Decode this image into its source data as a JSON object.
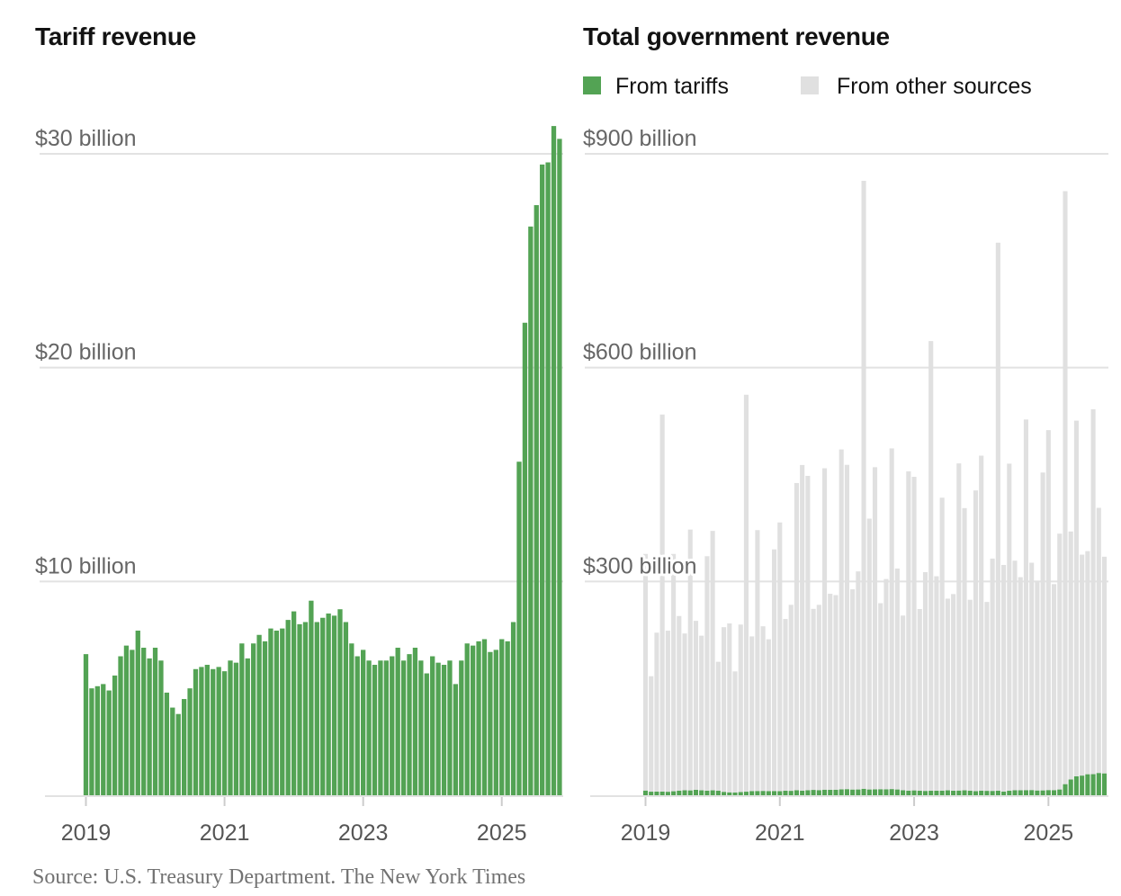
{
  "colors": {
    "tariffs": "#53a354",
    "other": "#e0e0e0",
    "grid": "#e2e2e2",
    "axis": "#cccccc"
  },
  "source": "Source: U.S. Treasury Department.  The New York Times",
  "chart_data": [
    {
      "type": "bar",
      "title": "Tariff revenue",
      "xlabel": "",
      "ylabel": "",
      "x_start": "2019-01",
      "x_end": "2025-11",
      "frequency": "monthly",
      "x_tick_labels": [
        "2019",
        "2021",
        "2023",
        "2025"
      ],
      "y_ticks": [
        10,
        20,
        30
      ],
      "y_tick_labels": [
        "$10 billion",
        "$20 billion",
        "$30 billion"
      ],
      "ylim": [
        0,
        30
      ],
      "units": "billion USD",
      "grid": true,
      "series": [
        {
          "name": "From tariffs",
          "values": [
            6.6,
            5.0,
            5.1,
            5.2,
            4.9,
            5.6,
            6.5,
            7.0,
            6.8,
            7.7,
            6.9,
            6.4,
            6.9,
            6.3,
            4.8,
            4.1,
            3.8,
            4.5,
            5.0,
            5.9,
            6.0,
            6.1,
            5.9,
            6.0,
            5.8,
            6.3,
            6.2,
            7.1,
            6.4,
            7.1,
            7.5,
            7.2,
            7.8,
            7.7,
            7.8,
            8.2,
            8.6,
            8.0,
            8.1,
            9.1,
            8.1,
            8.3,
            8.5,
            8.4,
            8.7,
            8.1,
            7.1,
            6.5,
            6.8,
            6.3,
            6.1,
            6.3,
            6.3,
            6.5,
            6.9,
            6.3,
            6.6,
            6.9,
            6.3,
            5.7,
            6.5,
            6.2,
            6.1,
            6.3,
            5.2,
            6.3,
            7.1,
            7.0,
            7.2,
            7.3,
            6.7,
            6.8,
            7.3,
            7.2,
            8.1,
            15.6,
            22.1,
            26.6,
            27.6,
            29.5,
            29.6,
            31.3,
            30.7
          ]
        }
      ]
    },
    {
      "type": "bar",
      "stacked": true,
      "title": "Total government revenue",
      "xlabel": "",
      "ylabel": "",
      "x_start": "2019-01",
      "x_end": "2025-11",
      "frequency": "monthly",
      "x_tick_labels": [
        "2019",
        "2021",
        "2023",
        "2025"
      ],
      "y_ticks": [
        300,
        600,
        900
      ],
      "y_tick_labels": [
        "$300 billion",
        "$600 billion",
        "$900 billion"
      ],
      "ylim": [
        0,
        900
      ],
      "units": "billion USD",
      "grid": true,
      "legend": {
        "placement": "top-left",
        "items": [
          "From tariffs",
          "From other sources"
        ]
      },
      "series": [
        {
          "name": "From tariffs",
          "values": [
            6.6,
            5.0,
            5.1,
            5.2,
            4.9,
            5.6,
            6.5,
            7.0,
            6.8,
            7.7,
            6.9,
            6.4,
            6.9,
            6.3,
            4.8,
            4.1,
            3.8,
            4.5,
            5.0,
            5.9,
            6.0,
            6.1,
            5.9,
            6.0,
            5.8,
            6.3,
            6.2,
            7.1,
            6.4,
            7.1,
            7.5,
            7.2,
            7.8,
            7.7,
            7.8,
            8.2,
            8.6,
            8.0,
            8.1,
            9.1,
            8.1,
            8.3,
            8.5,
            8.4,
            8.7,
            8.1,
            7.1,
            6.5,
            6.8,
            6.3,
            6.1,
            6.3,
            6.3,
            6.5,
            6.9,
            6.3,
            6.6,
            6.9,
            6.3,
            5.7,
            6.5,
            6.2,
            6.1,
            6.3,
            5.2,
            6.3,
            7.1,
            7.0,
            7.2,
            7.3,
            6.7,
            6.8,
            7.3,
            7.2,
            8.1,
            15.6,
            22.1,
            26.6,
            27.6,
            29.5,
            29.6,
            31.3,
            30.7
          ]
        },
        {
          "name": "From other sources",
          "values": [
            332,
            162,
            223,
            529,
            226,
            333,
            245,
            220,
            366,
            237,
            217,
            329,
            364,
            181,
            231,
            237,
            170,
            235,
            557,
            217,
            366,
            231,
            213,
            339,
            377,
            241,
            261,
            431,
            457,
            441,
            254,
            260,
            451,
            275,
            273,
            477,
            455,
            281,
            306,
            853,
            380,
            452,
            261,
            295,
            478,
            310,
            245,
            448,
            440,
            255,
            307,
            631,
            301,
            411,
            269,
            276,
            459,
            396,
            268,
            422,
            470,
            265,
            326,
            769,
            318,
            459,
            322,
            299,
            520,
            319,
            294,
            446,
            505,
            289,
            359,
            832,
            348,
            499,
            310,
            313,
            512,
            372,
            304
          ]
        }
      ]
    }
  ]
}
